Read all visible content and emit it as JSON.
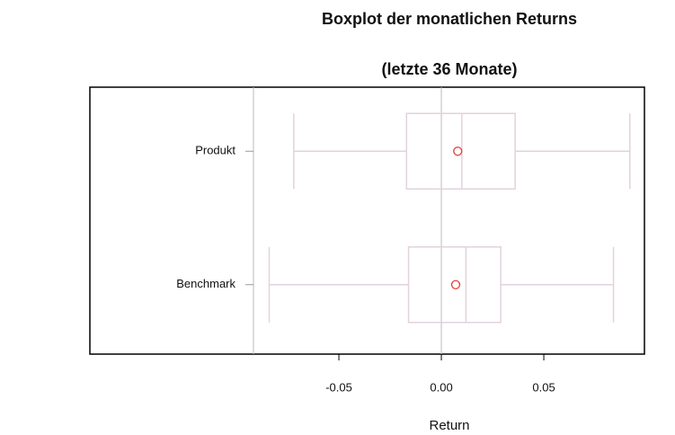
{
  "chart_data": {
    "type": "boxplot",
    "title": "Boxplot der monatlichen Returns",
    "subtitle": "(letzte 36 Monate)",
    "x_label": "Return",
    "categories": [
      "Produkt",
      "Benchmark"
    ],
    "min": [
      -0.072,
      -0.084
    ],
    "q1": [
      -0.017,
      -0.016
    ],
    "median": [
      0.01,
      0.012
    ],
    "q3": [
      0.036,
      0.029
    ],
    "max": [
      0.092,
      0.084
    ],
    "mean": [
      0.008,
      0.007
    ],
    "box_color": "#e2d2de",
    "mean_color": "#e0403a",
    "xlim": [
      -0.1715,
      0.0991
    ],
    "xticks": [
      -0.05,
      {
        "value": 0,
        "label": "0.00"
      },
      0.05
    ]
  }
}
